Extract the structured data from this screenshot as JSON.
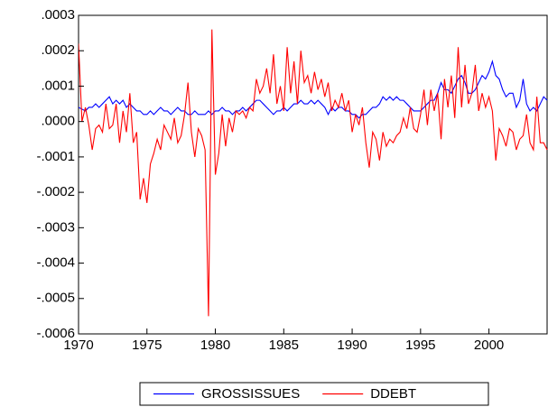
{
  "chart_data": {
    "type": "line",
    "x": [
      1970,
      1970.25,
      1970.5,
      1970.75,
      1971,
      1971.25,
      1971.5,
      1971.75,
      1972,
      1972.25,
      1972.5,
      1972.75,
      1973,
      1973.25,
      1973.5,
      1973.75,
      1974,
      1974.25,
      1974.5,
      1974.75,
      1975,
      1975.25,
      1975.5,
      1975.75,
      1976,
      1976.25,
      1976.5,
      1976.75,
      1977,
      1977.25,
      1977.5,
      1977.75,
      1978,
      1978.25,
      1978.5,
      1978.75,
      1979,
      1979.25,
      1979.5,
      1979.75,
      1980,
      1980.25,
      1980.5,
      1980.75,
      1981,
      1981.25,
      1981.5,
      1981.75,
      1982,
      1982.25,
      1982.5,
      1982.75,
      1983,
      1983.25,
      1983.5,
      1983.75,
      1984,
      1984.25,
      1984.5,
      1984.75,
      1985,
      1985.25,
      1985.5,
      1985.75,
      1986,
      1986.25,
      1986.5,
      1986.75,
      1987,
      1987.25,
      1987.5,
      1987.75,
      1988,
      1988.25,
      1988.5,
      1988.75,
      1989,
      1989.25,
      1989.5,
      1989.75,
      1990,
      1990.25,
      1990.5,
      1990.75,
      1991,
      1991.25,
      1991.5,
      1991.75,
      1992,
      1992.25,
      1992.5,
      1992.75,
      1993,
      1993.25,
      1993.5,
      1993.75,
      1994,
      1994.25,
      1994.5,
      1994.75,
      1995,
      1995.25,
      1995.5,
      1995.75,
      1996,
      1996.25,
      1996.5,
      1996.75,
      1997,
      1997.25,
      1997.5,
      1997.75,
      1998,
      1998.25,
      1998.5,
      1998.75,
      1999,
      1999.25,
      1999.5,
      1999.75,
      2000,
      2000.25,
      2000.5,
      2000.75,
      2001,
      2001.25,
      2001.5,
      2001.75,
      2002,
      2002.25,
      2002.5,
      2002.75,
      2003,
      2003.25,
      2003.5,
      2003.75,
      2004,
      2004.25
    ],
    "series": [
      {
        "name": "GROSSISSUES",
        "color": "#0000ff",
        "values": [
          4e-05,
          3.5e-05,
          3e-05,
          4e-05,
          4e-05,
          5e-05,
          4e-05,
          5e-05,
          6e-05,
          7e-05,
          5e-05,
          6e-05,
          5e-05,
          6e-05,
          4e-05,
          5e-05,
          4e-05,
          3e-05,
          3e-05,
          2e-05,
          2e-05,
          3e-05,
          2e-05,
          3e-05,
          4e-05,
          3e-05,
          3e-05,
          2e-05,
          3e-05,
          4e-05,
          3e-05,
          3e-05,
          2e-05,
          2e-05,
          3e-05,
          2e-05,
          2e-05,
          2e-05,
          3e-05,
          2e-05,
          3e-05,
          3e-05,
          4e-05,
          3e-05,
          3e-05,
          2e-05,
          3e-05,
          3e-05,
          4e-05,
          3e-05,
          4e-05,
          5e-05,
          6e-05,
          6e-05,
          5e-05,
          4e-05,
          3e-05,
          2e-05,
          3e-05,
          3e-05,
          4e-05,
          3e-05,
          4e-05,
          5e-05,
          5e-05,
          6e-05,
          5e-05,
          5e-05,
          6e-05,
          5e-05,
          6e-05,
          5e-05,
          4e-05,
          2e-05,
          4e-05,
          3e-05,
          4e-05,
          4e-05,
          3e-05,
          3e-05,
          2e-05,
          2e-05,
          1e-05,
          2e-05,
          2e-05,
          3e-05,
          4e-05,
          4e-05,
          5e-05,
          7e-05,
          6e-05,
          7e-05,
          6e-05,
          7e-05,
          6e-05,
          6e-05,
          5e-05,
          4e-05,
          3e-05,
          3e-05,
          3e-05,
          4e-05,
          5e-05,
          6e-05,
          6e-05,
          8e-05,
          0.00011,
          9e-05,
          9e-05,
          8e-05,
          0.0001,
          0.00012,
          0.00013,
          0.00011,
          8e-05,
          8e-05,
          9e-05,
          0.00011,
          0.00013,
          0.00012,
          0.00014,
          0.00017,
          0.00013,
          0.00012,
          9e-05,
          7e-05,
          8e-05,
          8e-05,
          4e-05,
          6e-05,
          0.00012,
          5e-05,
          3e-05,
          4e-05,
          3e-05,
          5e-05,
          7e-05,
          6e-05
        ]
      },
      {
        "name": "DDEBT",
        "color": "#ff0000",
        "values": [
          0.00022,
          0,
          4e-05,
          -1e-05,
          -8e-05,
          -2e-05,
          -1e-05,
          -3e-05,
          5e-05,
          -2e-05,
          -1e-05,
          5e-05,
          -6e-05,
          3e-05,
          -3e-05,
          8e-05,
          -6e-05,
          -3e-05,
          -0.00022,
          -0.00016,
          -0.00023,
          -0.00012,
          -9e-05,
          -5e-05,
          -8e-05,
          -1e-05,
          -3e-05,
          -5e-05,
          1e-05,
          -6e-05,
          -4e-05,
          2e-05,
          0.00011,
          -3e-05,
          -0.0001,
          -2e-05,
          -4e-05,
          -8e-05,
          -0.00055,
          0.00026,
          -0.00015,
          -9e-05,
          2e-05,
          -7e-05,
          1e-05,
          -3e-05,
          3e-05,
          2e-05,
          3e-05,
          1e-05,
          4e-05,
          3e-05,
          0.00012,
          8e-05,
          0.0001,
          0.00015,
          8e-05,
          0.00019,
          5e-05,
          0.0001,
          3e-05,
          0.00021,
          8e-05,
          0.00017,
          5e-05,
          0.0002,
          0.00011,
          0.00013,
          8e-05,
          0.00014,
          9e-05,
          0.00012,
          7e-05,
          0.00011,
          3e-05,
          6e-05,
          4e-05,
          8e-05,
          3e-05,
          6e-05,
          -3e-05,
          2e-05,
          -1e-05,
          4e-05,
          -6e-05,
          -0.00013,
          -3e-05,
          -5e-05,
          -0.00011,
          -3e-05,
          -7e-05,
          -5e-05,
          -6e-05,
          -4e-05,
          -3e-05,
          1e-05,
          -2e-05,
          4e-05,
          -2e-05,
          -3e-05,
          2e-05,
          9e-05,
          -1e-05,
          9e-05,
          3e-05,
          8e-05,
          -5e-05,
          0.00012,
          4e-05,
          0.00013,
          1e-05,
          0.00021,
          4e-05,
          0.00016,
          5e-05,
          8e-05,
          0.00016,
          3e-05,
          8e-05,
          4e-05,
          7e-05,
          3e-05,
          -0.00011,
          -2e-05,
          -4e-05,
          -7e-05,
          -2e-05,
          -3e-05,
          -8e-05,
          -5e-05,
          -4e-05,
          2e-05,
          -6e-05,
          -8e-05,
          7e-05,
          -6e-05,
          -6e-05,
          -8e-05
        ]
      }
    ],
    "xlim": [
      1970,
      2004.25
    ],
    "xticks": [
      1970,
      1975,
      1980,
      1985,
      1990,
      1995,
      2000
    ],
    "ylim": [
      -0.0006,
      0.0003
    ],
    "yticks": [
      {
        "value": -0.0006,
        "label": "-.0006"
      },
      {
        "value": -0.0005,
        "label": "-.0005"
      },
      {
        "value": -0.0004,
        "label": "-.0004"
      },
      {
        "value": -0.0003,
        "label": "-.0003"
      },
      {
        "value": -0.0002,
        "label": "-.0002"
      },
      {
        "value": -0.0001,
        "label": "-.0001"
      },
      {
        "value": 0,
        "label": ".0000"
      },
      {
        "value": 0.0001,
        "label": ".0001"
      },
      {
        "value": 0.0002,
        "label": ".0002"
      },
      {
        "value": 0.0003,
        "label": ".0003"
      }
    ],
    "legend": "bottom"
  }
}
